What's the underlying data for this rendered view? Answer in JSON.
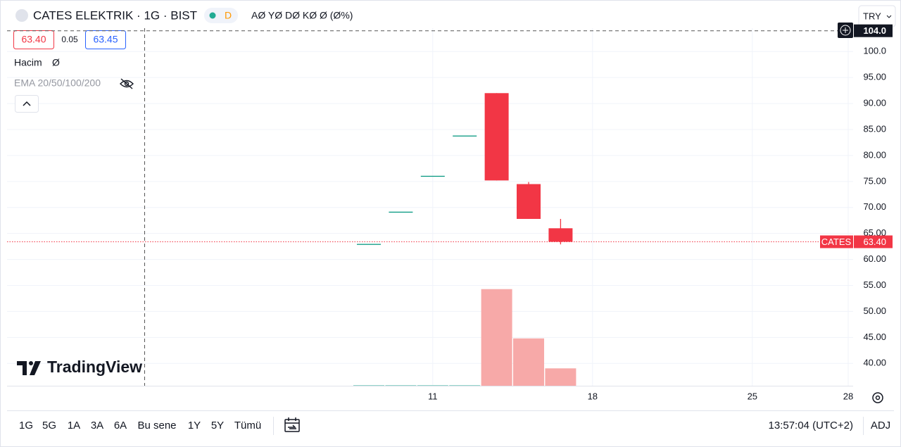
{
  "header": {
    "symbol": "CATES ELEKTRIK · 1G · BIST",
    "status": "D",
    "ohlc": "AØ YØ DØ KØ Ø (Ø%)",
    "currency": "TRY"
  },
  "quote": {
    "bid": "63.40",
    "spread": "0.05",
    "ask": "63.45"
  },
  "legend": {
    "volume_name": "Hacim",
    "volume_value": "Ø",
    "ema": "EMA 20/50/100/200"
  },
  "logo": "TradingView",
  "chart_data": {
    "type": "candlestick",
    "categories": [
      null,
      null,
      "11",
      null,
      null,
      null,
      null,
      "18",
      null,
      null,
      null,
      null,
      "25",
      null,
      null,
      "28"
    ],
    "open": [
      62.9,
      69.1,
      76.0,
      83.75,
      92.0,
      74.5,
      66.0,
      null,
      null,
      null,
      null,
      null,
      null,
      null,
      null,
      null
    ],
    "high": [
      62.9,
      69.1,
      76.0,
      83.75,
      92.0,
      74.9,
      67.8,
      null,
      null,
      null,
      null,
      null,
      null,
      null,
      null,
      null
    ],
    "low": [
      62.9,
      69.1,
      76.0,
      83.75,
      75.2,
      67.8,
      62.9,
      null,
      null,
      null,
      null,
      null,
      null,
      null,
      null,
      null
    ],
    "close": [
      62.9,
      69.1,
      76.0,
      83.75,
      75.2,
      67.8,
      63.4,
      null,
      null,
      null,
      null,
      null,
      null,
      null,
      null,
      null
    ],
    "volume": [
      0.7,
      0.7,
      0.7,
      0.7,
      100,
      49,
      18,
      null,
      null,
      null,
      null,
      null,
      null,
      null,
      null,
      null
    ],
    "vlim": [
      0,
      370
    ],
    "up_color": "#089981",
    "down_color": "#f23645",
    "volume_up_color": "#8fd3c8",
    "volume_down_color": "#f7a9a8",
    "ylim": [
      35.7,
      104.5
    ],
    "yticks": [
      {
        "value": 40,
        "label": "40.00"
      },
      {
        "value": 45,
        "label": "45.00"
      },
      {
        "value": 50,
        "label": "50.00"
      },
      {
        "value": 55,
        "label": "55.00"
      },
      {
        "value": 60,
        "label": "60.00"
      },
      {
        "value": 65,
        "label": "65.00"
      },
      {
        "value": 70,
        "label": "70.00"
      },
      {
        "value": 75,
        "label": "75.00"
      },
      {
        "value": 80,
        "label": "80.00"
      },
      {
        "value": 85,
        "label": "85.00"
      },
      {
        "value": 90,
        "label": "90.00"
      },
      {
        "value": 95,
        "label": "95.00"
      },
      {
        "value": 100,
        "label": "100.0"
      }
    ],
    "grid": true,
    "symbol_label": "CATES",
    "last_price": {
      "value": 63.4,
      "label": "63.40"
    },
    "crosshair_price": {
      "value": 104,
      "label": "104.0"
    }
  },
  "toolbar": {
    "ranges": [
      "1G",
      "5G",
      "1A",
      "3A",
      "6A",
      "Bu sene",
      "1Y",
      "5Y",
      "Tümü"
    ],
    "time": "13:57:04 (UTC+2)",
    "adj": "ADJ"
  }
}
